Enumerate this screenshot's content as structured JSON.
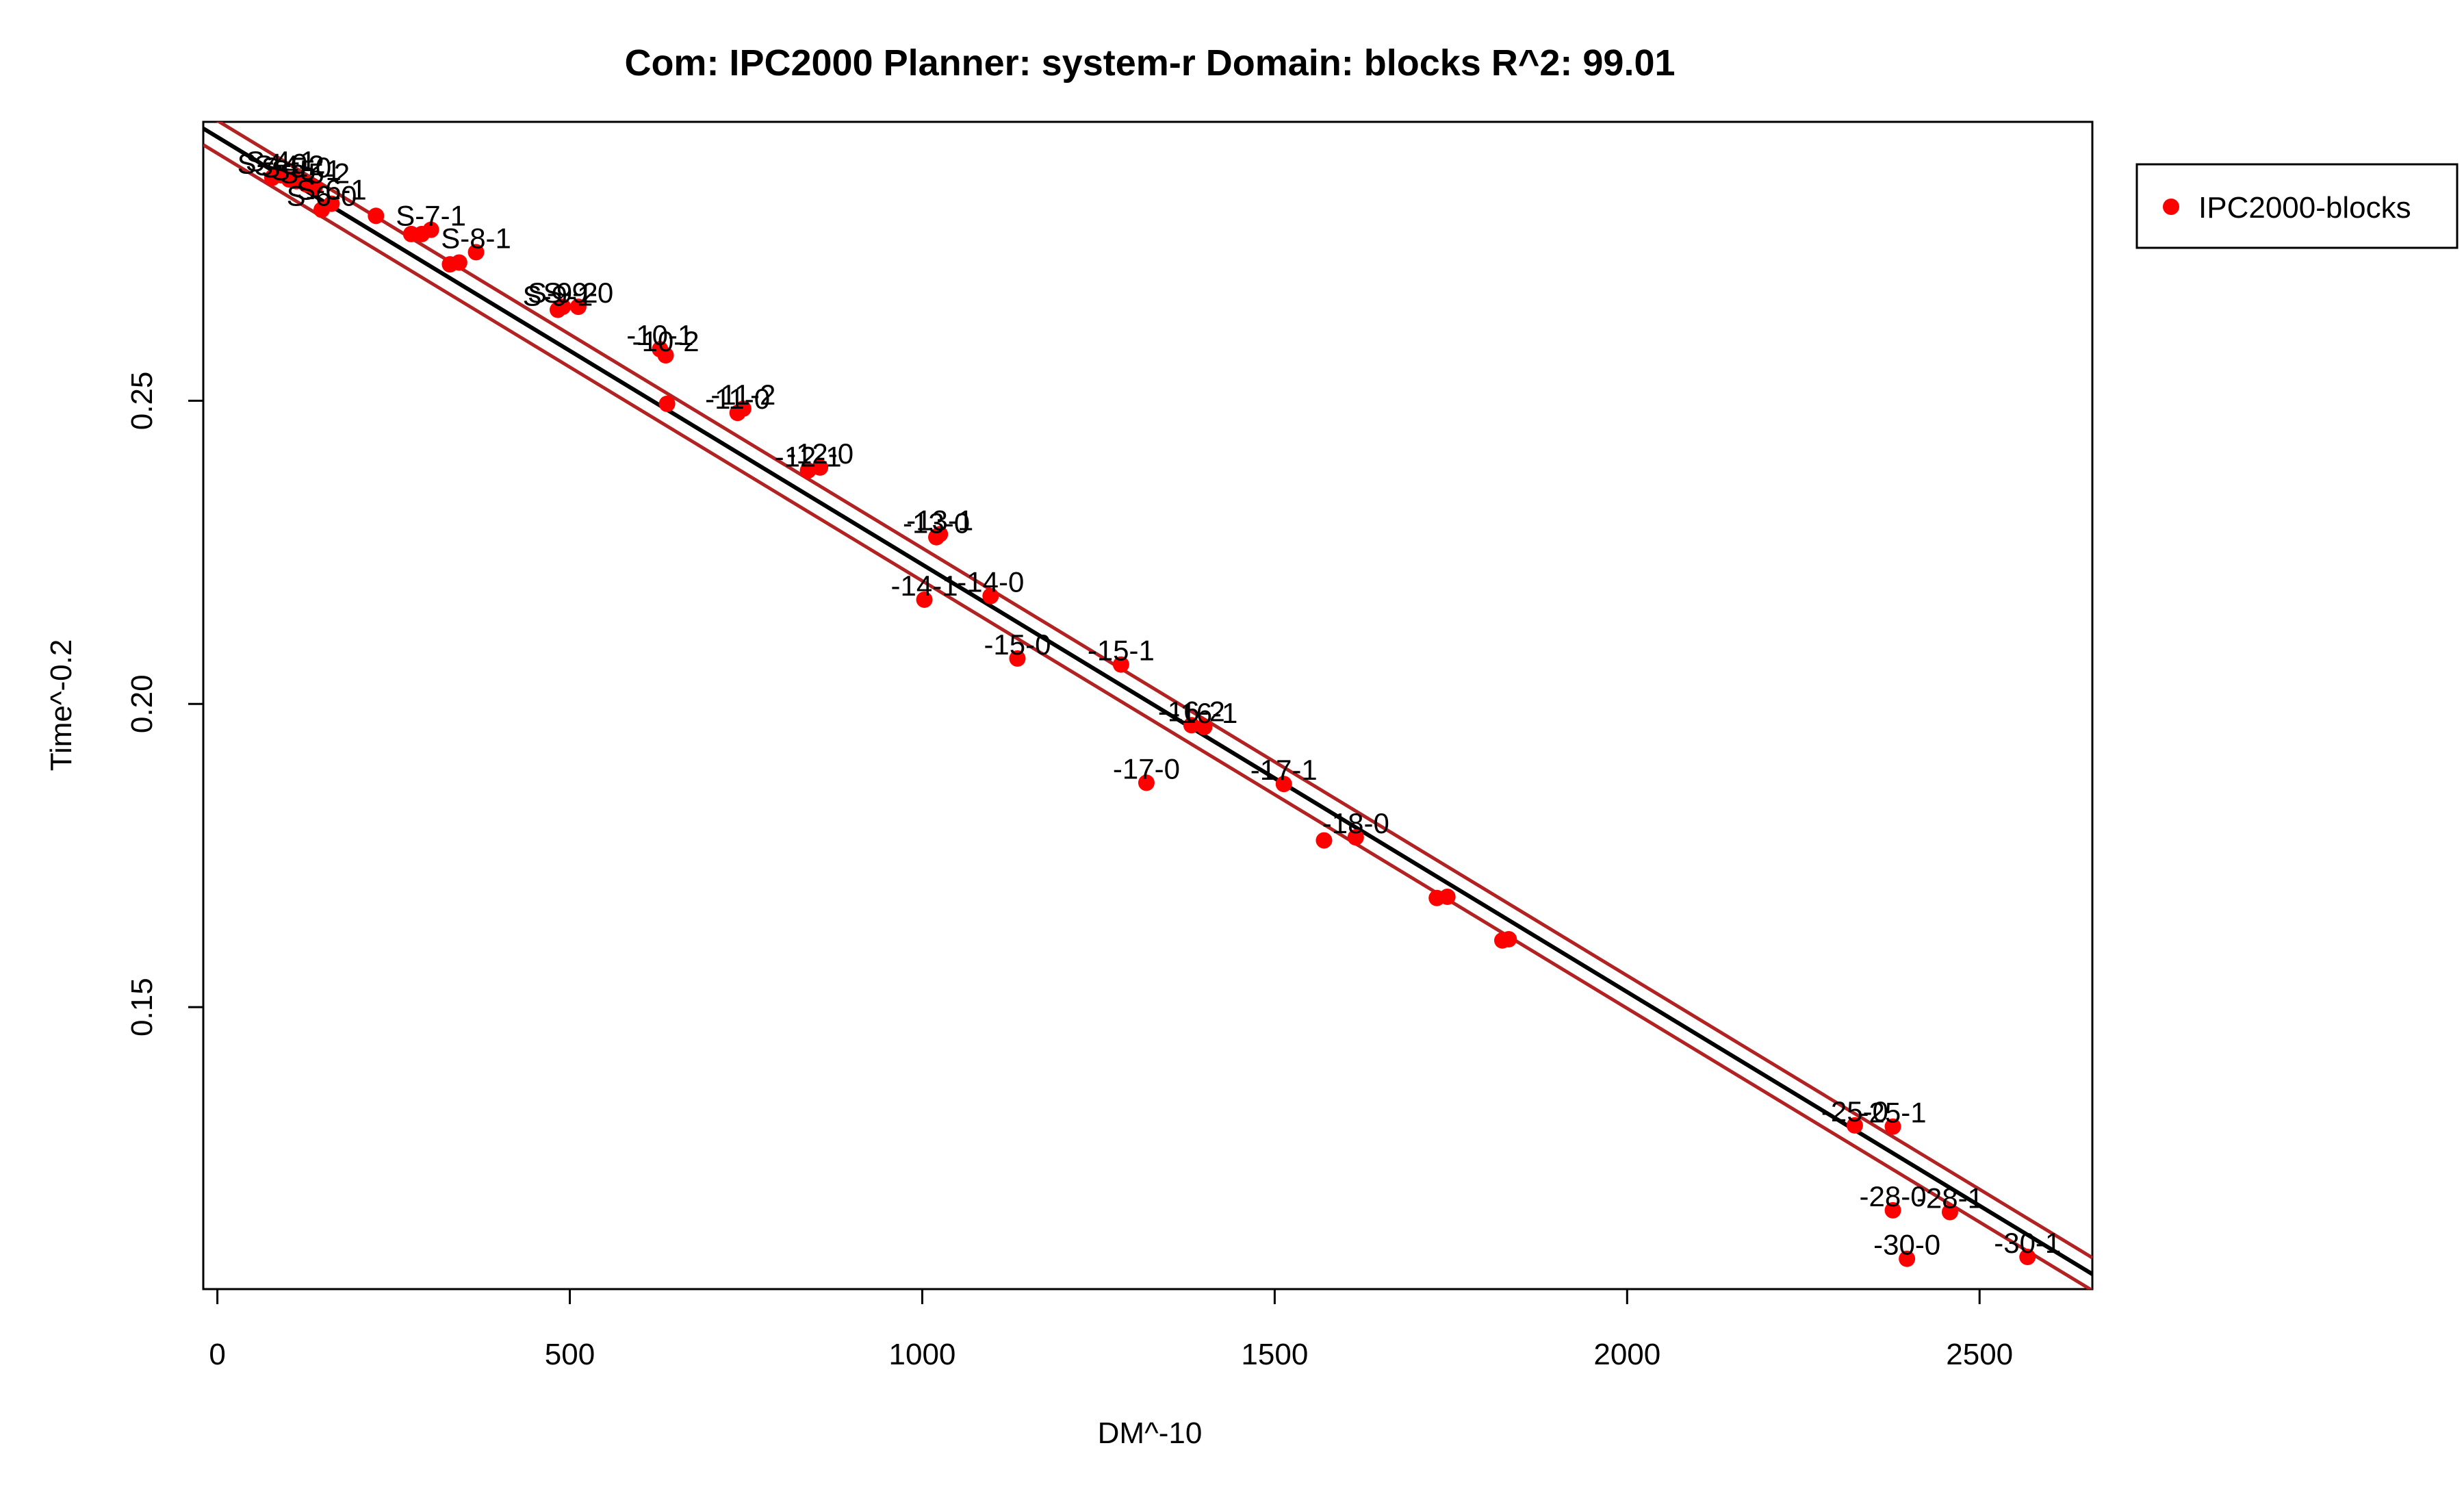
{
  "chart_data": {
    "type": "scatter",
    "title": "Com: IPC2000 Planner: system-r Domain: blocks R^2: 99.01",
    "xlabel": "DM^-10",
    "ylabel": "Time^-0.2",
    "xlim": [
      -20,
      2660
    ],
    "ylim": [
      0.1035,
      0.296
    ],
    "x_ticks": [
      0,
      500,
      1000,
      1500,
      2000,
      2500
    ],
    "x_tick_labels": [
      "0",
      "500",
      "1000",
      "1500",
      "2000",
      "2500"
    ],
    "y_ticks": [
      0.15,
      0.2,
      0.25
    ],
    "y_tick_labels": [
      "0.15",
      "0.20",
      "0.25"
    ],
    "legend": {
      "position": "top-right",
      "entries": [
        "IPC2000-blocks"
      ]
    },
    "colors": {
      "points": "#ff0000",
      "fit_line": "#000000",
      "band_lines": "#b22222"
    },
    "fit": {
      "slope": -7.05e-05,
      "intercept": 0.2935,
      "band_offset": 0.0027
    },
    "series": [
      {
        "name": "IPC2000-blocks",
        "points": [
          {
            "x": 78,
            "y": 0.2868,
            "label": "S-4-0"
          },
          {
            "x": 90,
            "y": 0.2872,
            "label": "S-4-1"
          },
          {
            "x": 102,
            "y": 0.2865,
            "label": "S-4-2"
          },
          {
            "x": 112,
            "y": 0.2862,
            "label": "S-5-0"
          },
          {
            "x": 126,
            "y": 0.2857,
            "label": "S-5-1"
          },
          {
            "x": 138,
            "y": 0.2852,
            "label": "S-5-2"
          },
          {
            "x": 148,
            "y": 0.2815,
            "label": "S-6-0"
          },
          {
            "x": 162,
            "y": 0.2825,
            "label": "S-6-1"
          },
          {
            "x": 225,
            "y": 0.2805,
            "label": ""
          },
          {
            "x": 275,
            "y": 0.2775,
            "label": ""
          },
          {
            "x": 290,
            "y": 0.2775,
            "label": ""
          },
          {
            "x": 303,
            "y": 0.2782,
            "label": "S-7-1"
          },
          {
            "x": 330,
            "y": 0.2725,
            "label": ""
          },
          {
            "x": 343,
            "y": 0.2728,
            "label": ""
          },
          {
            "x": 367,
            "y": 0.2745,
            "label": "S-8-1"
          },
          {
            "x": 483,
            "y": 0.265,
            "label": "S-9-1"
          },
          {
            "x": 490,
            "y": 0.2655,
            "label": "S-9-2"
          },
          {
            "x": 512,
            "y": 0.2655,
            "label": "S-9-0"
          },
          {
            "x": 628,
            "y": 0.2585,
            "label": "-10-1"
          },
          {
            "x": 636,
            "y": 0.2575,
            "label": "-10-2"
          },
          {
            "x": 638,
            "y": 0.2495,
            "label": ""
          },
          {
            "x": 738,
            "y": 0.248,
            "label": "-11-0"
          },
          {
            "x": 746,
            "y": 0.2487,
            "label": "-11-2"
          },
          {
            "x": 838,
            "y": 0.2385,
            "label": "-12-1"
          },
          {
            "x": 855,
            "y": 0.239,
            "label": "-12-0"
          },
          {
            "x": 1020,
            "y": 0.2275,
            "label": "-13-0"
          },
          {
            "x": 1025,
            "y": 0.228,
            "label": "-13-1"
          },
          {
            "x": 1003,
            "y": 0.2172,
            "label": "-14-1"
          },
          {
            "x": 1097,
            "y": 0.2178,
            "label": "-14-0"
          },
          {
            "x": 1135,
            "y": 0.2075,
            "label": "-15-0"
          },
          {
            "x": 1282,
            "y": 0.2065,
            "label": "-15-1"
          },
          {
            "x": 1318,
            "y": 0.187,
            "label": "-17-0"
          },
          {
            "x": 1382,
            "y": 0.1965,
            "label": "-16-2"
          },
          {
            "x": 1400,
            "y": 0.1962,
            "label": "-16-1"
          },
          {
            "x": 1513,
            "y": 0.1868,
            "label": "-17-1"
          },
          {
            "x": 1570,
            "y": 0.1775,
            "label": ""
          },
          {
            "x": 1615,
            "y": 0.178,
            "label": "-18-0"
          },
          {
            "x": 1730,
            "y": 0.168,
            "label": ""
          },
          {
            "x": 1745,
            "y": 0.1682,
            "label": ""
          },
          {
            "x": 1823,
            "y": 0.161,
            "label": ""
          },
          {
            "x": 1832,
            "y": 0.1612,
            "label": ""
          },
          {
            "x": 2323,
            "y": 0.1305,
            "label": "-25-0"
          },
          {
            "x": 2377,
            "y": 0.1303,
            "label": "-25-1"
          },
          {
            "x": 2377,
            "y": 0.1165,
            "label": "-28-0"
          },
          {
            "x": 2458,
            "y": 0.1162,
            "label": "-28-1"
          },
          {
            "x": 2397,
            "y": 0.1085,
            "label": "-30-0"
          },
          {
            "x": 2568,
            "y": 0.1088,
            "label": "-30-1"
          }
        ]
      }
    ]
  }
}
